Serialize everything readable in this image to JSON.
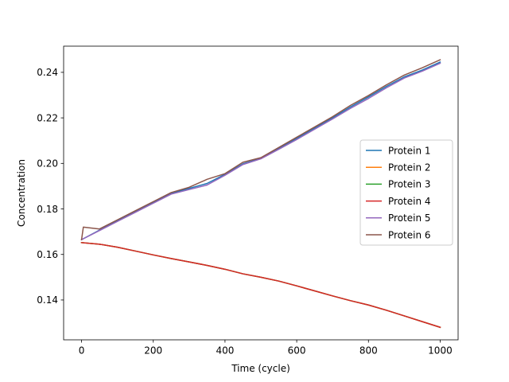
{
  "chart_data": {
    "type": "line",
    "title": "",
    "xlabel": "Time (cycle)",
    "ylabel": "Concentration",
    "xlim": [
      -50,
      1050
    ],
    "ylim": [
      0.1225,
      0.2515
    ],
    "xticks": [
      0,
      200,
      400,
      600,
      800,
      1000
    ],
    "xtick_labels": [
      "0",
      "200",
      "400",
      "600",
      "800",
      "1000"
    ],
    "yticks": [
      0.14,
      0.16,
      0.18,
      0.2,
      0.22,
      0.24
    ],
    "ytick_labels": [
      "0.14",
      "0.16",
      "0.18",
      "0.20",
      "0.22",
      "0.24"
    ],
    "grid": false,
    "legend": {
      "position": "center-right"
    },
    "series": [
      {
        "name": "Protein 1",
        "color": "#1f77b4",
        "x": [
          0,
          50,
          100,
          150,
          200,
          250,
          300,
          350,
          400,
          450,
          500,
          550,
          600,
          650,
          700,
          750,
          800,
          850,
          900,
          950,
          1000
        ],
        "y": [
          0.1665,
          0.1707,
          0.1749,
          0.1789,
          0.1829,
          0.1869,
          0.189,
          0.1912,
          0.1952,
          0.1998,
          0.2022,
          0.2066,
          0.211,
          0.2155,
          0.22,
          0.2248,
          0.2292,
          0.2338,
          0.238,
          0.241,
          0.2445
        ]
      },
      {
        "name": "Protein 2",
        "color": "#ff7f0e",
        "x": [
          0,
          50,
          100,
          150,
          200,
          250,
          300,
          350,
          400,
          450,
          500,
          550,
          600,
          650,
          700,
          750,
          800,
          850,
          900,
          950,
          1000
        ],
        "y": [
          0.1652,
          0.1645,
          0.1632,
          0.1615,
          0.1598,
          0.1582,
          0.1567,
          0.1552,
          0.1535,
          0.1515,
          0.15,
          0.1483,
          0.1462,
          0.144,
          0.1418,
          0.1397,
          0.1378,
          0.1355,
          0.133,
          0.1305,
          0.128
        ]
      },
      {
        "name": "Protein 3",
        "color": "#2ca02c",
        "x": [
          0,
          50,
          100,
          150,
          200,
          250,
          300,
          350,
          400,
          450,
          500,
          550,
          600,
          650,
          700,
          750,
          800,
          850,
          900,
          950,
          1000
        ],
        "y": [
          0.1652,
          0.1645,
          0.1632,
          0.1615,
          0.1598,
          0.1582,
          0.1567,
          0.1552,
          0.1535,
          0.1515,
          0.15,
          0.1483,
          0.1462,
          0.144,
          0.1418,
          0.1397,
          0.1378,
          0.1355,
          0.133,
          0.1305,
          0.128
        ]
      },
      {
        "name": "Protein 4",
        "color": "#d62728",
        "x": [
          0,
          50,
          100,
          150,
          200,
          250,
          300,
          350,
          400,
          450,
          500,
          550,
          600,
          650,
          700,
          750,
          800,
          850,
          900,
          950,
          1000
        ],
        "y": [
          0.1652,
          0.1645,
          0.1632,
          0.1615,
          0.1598,
          0.1582,
          0.1567,
          0.1552,
          0.1535,
          0.1515,
          0.15,
          0.1483,
          0.1462,
          0.144,
          0.1418,
          0.1397,
          0.1378,
          0.1355,
          0.133,
          0.1305,
          0.128
        ]
      },
      {
        "name": "Protein 5",
        "color": "#9467bd",
        "x": [
          0,
          50,
          100,
          150,
          200,
          250,
          300,
          350,
          400,
          450,
          500,
          550,
          600,
          650,
          700,
          750,
          800,
          850,
          900,
          950,
          1000
        ],
        "y": [
          0.1665,
          0.1705,
          0.1745,
          0.1785,
          0.1825,
          0.1865,
          0.1885,
          0.1905,
          0.1948,
          0.1995,
          0.202,
          0.2062,
          0.2105,
          0.215,
          0.2195,
          0.2242,
          0.2285,
          0.2332,
          0.2375,
          0.2405,
          0.244
        ]
      },
      {
        "name": "Protein 6",
        "color": "#8c564b",
        "x": [
          0,
          5,
          50,
          100,
          150,
          200,
          250,
          300,
          350,
          400,
          450,
          500,
          550,
          600,
          650,
          700,
          750,
          800,
          850,
          900,
          950,
          1000
        ],
        "y": [
          0.1665,
          0.172,
          0.1712,
          0.1752,
          0.1792,
          0.1832,
          0.1872,
          0.1895,
          0.193,
          0.1955,
          0.2005,
          0.2025,
          0.207,
          0.2115,
          0.216,
          0.2205,
          0.2255,
          0.2298,
          0.2345,
          0.2388,
          0.242,
          0.2455
        ]
      }
    ]
  }
}
